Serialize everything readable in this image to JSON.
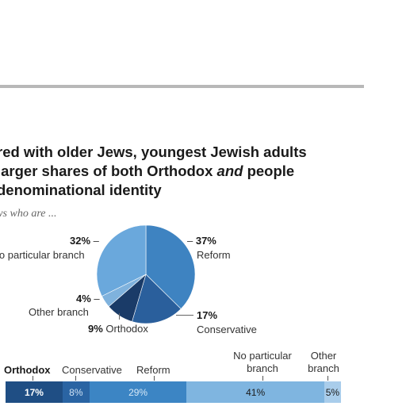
{
  "title_lines": [
    "red with older Jews, youngest Jewish adults",
    "larger shares of both Orthodox <i>and</i> people",
    " denominational identity"
  ],
  "subtitle": "ews who are ...",
  "chart_data": [
    {
      "type": "pie",
      "slices": [
        {
          "label": "Reform",
          "value": 37,
          "display": "37%",
          "color": "#3e83c1"
        },
        {
          "label": "Conservative",
          "value": 17,
          "display": "17%",
          "color": "#2a5f9c"
        },
        {
          "label": "Orthodox",
          "value": 9,
          "display": "9%",
          "color": "#1a3b68"
        },
        {
          "label": "Other branch",
          "value": 4,
          "display": "4%",
          "color": "#7fb2dd"
        },
        {
          "label": "lo particular branch",
          "value": 32,
          "display": "32%",
          "color": "#6aa8dc"
        }
      ]
    },
    {
      "type": "bar",
      "orientation": "horizontal-stacked",
      "categories": [
        "Orthodox",
        "Conservative",
        "Reform",
        "No particular branch",
        "Other branch"
      ],
      "category_lines": [
        [
          "Orthodox"
        ],
        [
          "Conservative"
        ],
        [
          "Reform"
        ],
        [
          "No particular",
          "branch"
        ],
        [
          "Other",
          "branch"
        ]
      ],
      "values": [
        17,
        8,
        29,
        41,
        5
      ],
      "labels": [
        "17%",
        "8%",
        "29%",
        "41%",
        "5%"
      ],
      "colors": [
        "#1f4e84",
        "#2a64a3",
        "#3c85c4",
        "#7fb5e0",
        "#a9cdeb"
      ],
      "label_colors": [
        "#ffffff",
        "#cfe2f4",
        "#d6e8f7",
        "#1a1a1a",
        "#1a1a1a"
      ]
    }
  ]
}
